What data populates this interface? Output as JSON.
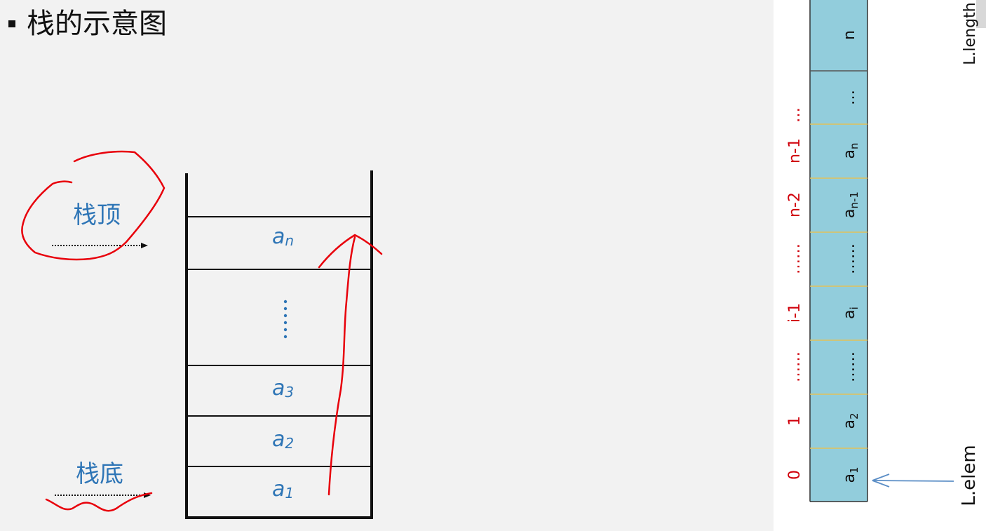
{
  "title": "栈的示意图",
  "stack": {
    "top_label": "栈顶",
    "bottom_label": "栈底",
    "cells": [
      {
        "base": "a",
        "sub": "n"
      },
      {
        "base": "",
        "sub": "",
        "dots": true
      },
      {
        "base": "a",
        "sub": "3"
      },
      {
        "base": "a",
        "sub": "2"
      },
      {
        "base": "a",
        "sub": "1"
      }
    ]
  },
  "array": {
    "cells": [
      {
        "base": "n",
        "sub": ""
      },
      {
        "base": "…",
        "sub": ""
      },
      {
        "base": "a",
        "sub": "n"
      },
      {
        "base": "a",
        "sub": "n-1"
      },
      {
        "base": "……",
        "sub": ""
      },
      {
        "base": "a",
        "sub": "i"
      },
      {
        "base": "……",
        "sub": ""
      },
      {
        "base": "a",
        "sub": "2"
      },
      {
        "base": "a",
        "sub": "1"
      }
    ],
    "indices": [
      "…",
      "n-1",
      "n-2",
      "……",
      "i-1",
      "……",
      "1",
      "0"
    ],
    "length_label": "L.length",
    "elem_label": "L.elem"
  },
  "colors": {
    "label_blue": "#2e75b6",
    "annotation_red": "#e8000b",
    "cell_fill": "#92cddc",
    "index_red": "#d0000b",
    "cell_divider": "#e2c15a"
  }
}
